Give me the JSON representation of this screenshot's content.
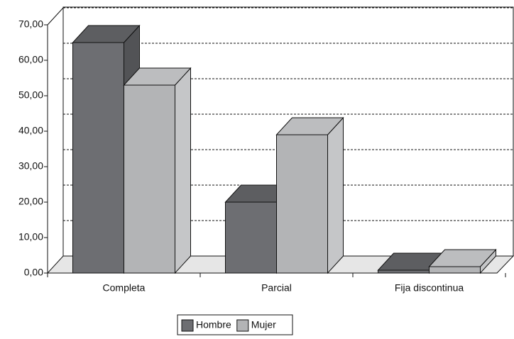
{
  "chart_data": {
    "type": "bar3d",
    "categories": [
      "Completa",
      "Parcial",
      "Fija discontinua"
    ],
    "series": [
      {
        "name": "Hombre",
        "color": "#6d6e72",
        "values": [
          65,
          20,
          0.8
        ]
      },
      {
        "name": "Mujer",
        "color": "#b3b4b6",
        "values": [
          53,
          39,
          1.8
        ]
      }
    ],
    "ylim": [
      0,
      70
    ],
    "yticks": [
      {
        "value": 0,
        "label": "0,00"
      },
      {
        "value": 10,
        "label": "10,00"
      },
      {
        "value": 20,
        "label": "20,00"
      },
      {
        "value": 30,
        "label": "30,00"
      },
      {
        "value": 40,
        "label": "40,00"
      },
      {
        "value": 50,
        "label": "50,00"
      },
      {
        "value": 60,
        "label": "60,00"
      },
      {
        "value": 70,
        "label": "70,00"
      }
    ],
    "grid": true,
    "legend": "bottom"
  }
}
